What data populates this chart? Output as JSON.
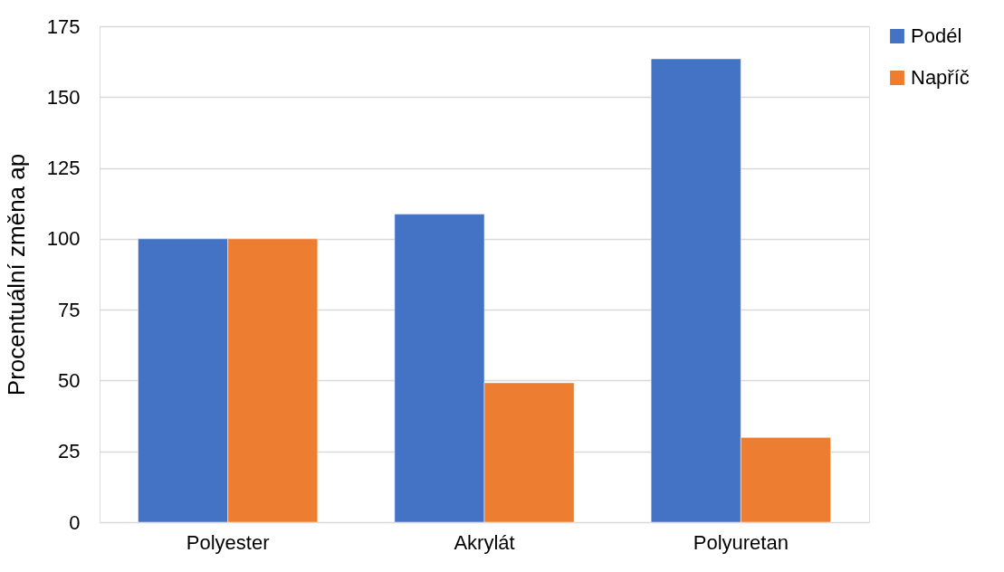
{
  "chart_data": {
    "type": "bar",
    "ylabel": "Procentuální změna ap",
    "categories": [
      "Polyester",
      "Akrylát",
      "Polyuretan"
    ],
    "series": [
      {
        "name": "Podél",
        "color": "#4472c4",
        "values": [
          100,
          108.7,
          163.5
        ]
      },
      {
        "name": "Napříč",
        "color": "#ed7d31",
        "values": [
          100,
          49.2,
          29.9
        ]
      }
    ],
    "ylim": [
      0,
      175
    ],
    "yticks": [
      0,
      25,
      50,
      75,
      100,
      125,
      150,
      175
    ],
    "grid": "y",
    "legend": "right"
  }
}
